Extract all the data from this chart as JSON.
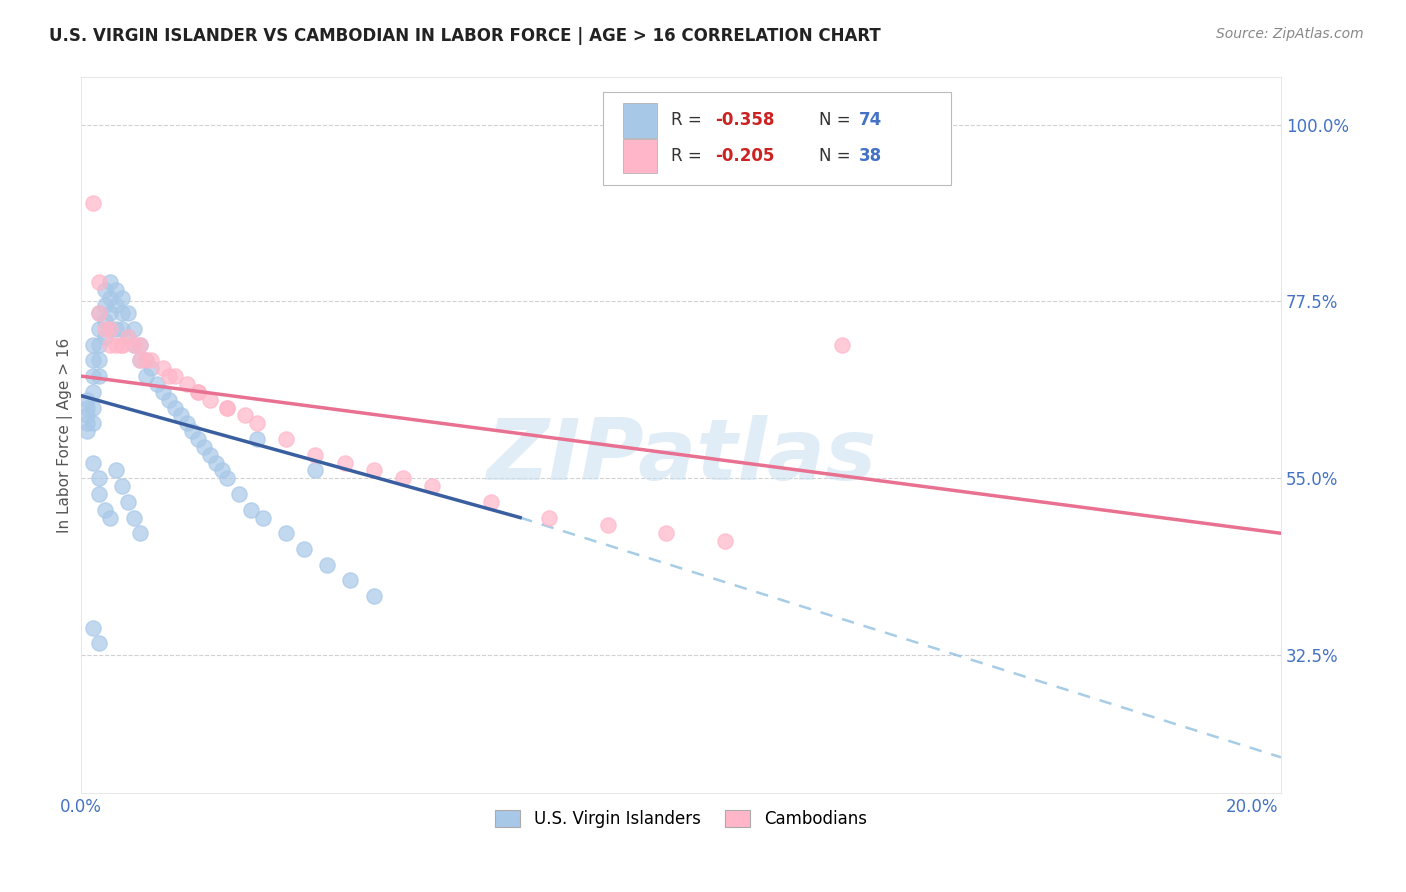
{
  "title": "U.S. VIRGIN ISLANDER VS CAMBODIAN IN LABOR FORCE | AGE > 16 CORRELATION CHART",
  "source": "Source: ZipAtlas.com",
  "ylabel": "In Labor Force | Age > 16",
  "xlim": [
    0.0,
    0.205
  ],
  "ylim": [
    0.15,
    1.06
  ],
  "color_vi": "#a8c8e8",
  "color_cam": "#ffb6c8",
  "color_vi_line": "#3a5fa0",
  "color_cam_line": "#e87090",
  "label_vi": "U.S. Virgin Islanders",
  "label_cam": "Cambodians",
  "watermark": "ZIPatlas",
  "vi_x": [
    0.001,
    0.001,
    0.001,
    0.001,
    0.001,
    0.002,
    0.002,
    0.002,
    0.002,
    0.002,
    0.002,
    0.003,
    0.003,
    0.003,
    0.003,
    0.003,
    0.004,
    0.004,
    0.004,
    0.004,
    0.005,
    0.005,
    0.005,
    0.005,
    0.006,
    0.006,
    0.006,
    0.007,
    0.007,
    0.007,
    0.008,
    0.008,
    0.009,
    0.009,
    0.01,
    0.01,
    0.011,
    0.011,
    0.012,
    0.013,
    0.014,
    0.015,
    0.016,
    0.017,
    0.018,
    0.019,
    0.02,
    0.021,
    0.022,
    0.023,
    0.024,
    0.025,
    0.027,
    0.029,
    0.031,
    0.035,
    0.038,
    0.042,
    0.046,
    0.05,
    0.002,
    0.003,
    0.003,
    0.004,
    0.005,
    0.006,
    0.007,
    0.008,
    0.009,
    0.01,
    0.002,
    0.003,
    0.04,
    0.03
  ],
  "vi_y": [
    0.65,
    0.64,
    0.63,
    0.62,
    0.61,
    0.72,
    0.7,
    0.68,
    0.66,
    0.64,
    0.62,
    0.76,
    0.74,
    0.72,
    0.7,
    0.68,
    0.79,
    0.77,
    0.75,
    0.73,
    0.8,
    0.78,
    0.76,
    0.74,
    0.79,
    0.77,
    0.74,
    0.78,
    0.76,
    0.74,
    0.76,
    0.73,
    0.74,
    0.72,
    0.72,
    0.7,
    0.7,
    0.68,
    0.69,
    0.67,
    0.66,
    0.65,
    0.64,
    0.63,
    0.62,
    0.61,
    0.6,
    0.59,
    0.58,
    0.57,
    0.56,
    0.55,
    0.53,
    0.51,
    0.5,
    0.48,
    0.46,
    0.44,
    0.42,
    0.4,
    0.57,
    0.55,
    0.53,
    0.51,
    0.5,
    0.56,
    0.54,
    0.52,
    0.5,
    0.48,
    0.36,
    0.34,
    0.56,
    0.6
  ],
  "cam_x": [
    0.002,
    0.003,
    0.004,
    0.005,
    0.006,
    0.007,
    0.008,
    0.009,
    0.01,
    0.011,
    0.012,
    0.014,
    0.016,
    0.018,
    0.02,
    0.022,
    0.025,
    0.028,
    0.03,
    0.035,
    0.04,
    0.045,
    0.05,
    0.055,
    0.06,
    0.07,
    0.08,
    0.09,
    0.1,
    0.11,
    0.003,
    0.005,
    0.007,
    0.01,
    0.015,
    0.02,
    0.025,
    0.13
  ],
  "cam_y": [
    0.9,
    0.8,
    0.74,
    0.72,
    0.72,
    0.72,
    0.73,
    0.72,
    0.72,
    0.7,
    0.7,
    0.69,
    0.68,
    0.67,
    0.66,
    0.65,
    0.64,
    0.63,
    0.62,
    0.6,
    0.58,
    0.57,
    0.56,
    0.55,
    0.54,
    0.52,
    0.5,
    0.49,
    0.48,
    0.47,
    0.76,
    0.74,
    0.72,
    0.7,
    0.68,
    0.66,
    0.64,
    0.72
  ],
  "vi_line_x": [
    0.0,
    0.075
  ],
  "vi_line_y": [
    0.655,
    0.5
  ],
  "cam_line_x": [
    0.0,
    0.205
  ],
  "cam_line_y": [
    0.68,
    0.48
  ],
  "dash_line_x": [
    0.075,
    0.205
  ],
  "dash_line_y": [
    0.5,
    0.195
  ]
}
